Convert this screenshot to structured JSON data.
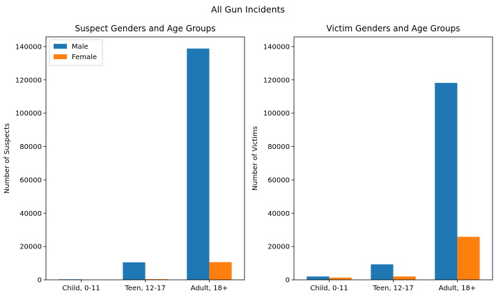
{
  "figure": {
    "suptitle": "All Gun Incidents"
  },
  "colors": {
    "male": "#1f77b4",
    "female": "#ff7f0e"
  },
  "chart_data": [
    {
      "type": "bar",
      "title": "Suspect Genders and Age Groups",
      "xlabel": "",
      "ylabel": "Number of Suspects",
      "categories": [
        "Child, 0-11",
        "Teen, 12-17",
        "Adult, 18+"
      ],
      "series": [
        {
          "name": "Male",
          "values": [
            300,
            10500,
            138800
          ]
        },
        {
          "name": "Female",
          "values": [
            50,
            400,
            10600
          ]
        }
      ],
      "ylim": [
        0,
        145800
      ],
      "yticks": [
        0,
        20000,
        40000,
        60000,
        80000,
        100000,
        120000,
        140000
      ],
      "legend": "upper-left",
      "grid": false
    },
    {
      "type": "bar",
      "title": "Victim Genders and Age Groups",
      "xlabel": "",
      "ylabel": "Number of Victims",
      "categories": [
        "Child, 0-11",
        "Teen, 12-17",
        "Adult, 18+"
      ],
      "series": [
        {
          "name": "Male",
          "values": [
            2000,
            9300,
            118200
          ]
        },
        {
          "name": "Female",
          "values": [
            1300,
            2000,
            25800
          ]
        }
      ],
      "ylim": [
        0,
        145800
      ],
      "yticks": [
        0,
        20000,
        40000,
        60000,
        80000,
        100000,
        120000,
        140000
      ],
      "legend": "none",
      "grid": false
    }
  ]
}
